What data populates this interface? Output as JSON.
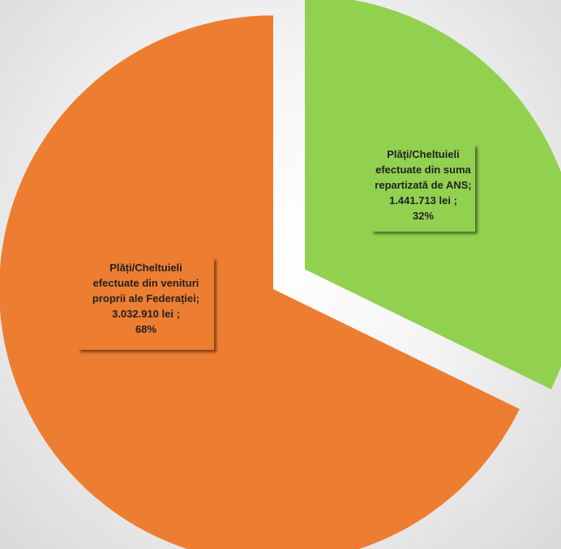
{
  "chart_data": {
    "type": "pie",
    "exploded": true,
    "slices": [
      {
        "label": "Plăți/Cheltuieli efectuate din suma repartizată de ANS",
        "value": 1441713,
        "value_label": "1.441.713 lei",
        "percent": 32,
        "color": "#92d050",
        "label_lines": [
          "Plăți/Cheltuieli",
          "efectuate din suma",
          "repartizată de ANS;",
          "1.441.713 lei ;",
          "32%"
        ]
      },
      {
        "label": "Plăți/Cheltuieli efectuate din venituri proprii ale Federației",
        "value": 3032910,
        "value_label": "3.032.910 lei",
        "percent": 68,
        "color": "#ed7d31",
        "label_lines": [
          "Plăți/Cheltuieli",
          "efectuate din venituri",
          "proprii ale Federației;",
          "3.032.910 lei ;",
          "68%"
        ]
      }
    ]
  }
}
